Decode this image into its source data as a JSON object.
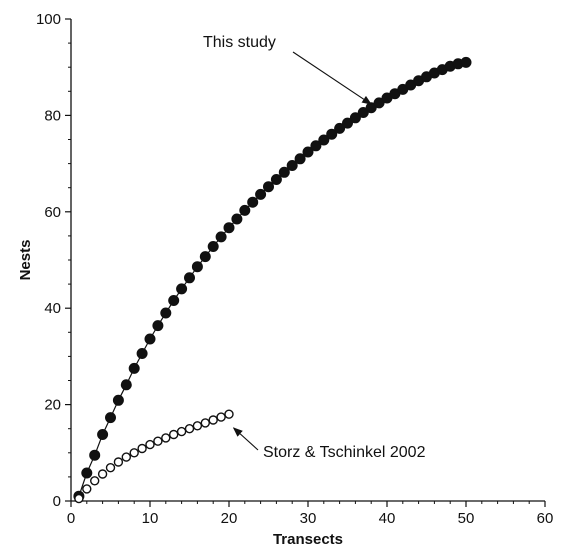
{
  "chart_data": {
    "type": "scatter",
    "title": "",
    "xlabel": "Transects",
    "ylabel": "Nests",
    "xlim": [
      0,
      60
    ],
    "ylim": [
      0,
      100
    ],
    "xticks": [
      "0",
      "10",
      "20",
      "30",
      "40",
      "50",
      "60"
    ],
    "yticks": [
      "0",
      "20",
      "40",
      "60",
      "80",
      "100"
    ],
    "grid": false,
    "series": [
      {
        "name": "This study",
        "marker": "filled-circle",
        "line": true,
        "color": "#111111",
        "x": [
          1,
          2,
          3,
          4,
          5,
          6,
          7,
          8,
          9,
          10,
          11,
          12,
          13,
          14,
          15,
          16,
          17,
          18,
          19,
          20,
          21,
          22,
          23,
          24,
          25,
          26,
          27,
          28,
          29,
          30,
          31,
          32,
          33,
          34,
          35,
          36,
          37,
          38,
          39,
          40,
          41,
          42,
          43,
          44,
          45,
          46,
          47,
          48,
          49,
          50
        ],
        "values": [
          1.0,
          5.8,
          9.5,
          13.8,
          17.3,
          20.9,
          24.1,
          27.5,
          30.6,
          33.6,
          36.4,
          39.0,
          41.6,
          44.0,
          46.3,
          48.6,
          50.7,
          52.8,
          54.8,
          56.7,
          58.5,
          60.3,
          62.0,
          63.6,
          65.2,
          66.7,
          68.2,
          69.6,
          71.0,
          72.4,
          73.7,
          74.9,
          76.1,
          77.3,
          78.4,
          79.5,
          80.6,
          81.6,
          82.6,
          83.6,
          84.5,
          85.4,
          86.3,
          87.2,
          88.0,
          88.8,
          89.5,
          90.2,
          90.7,
          91.0
        ]
      },
      {
        "name": "Storz & Tschinkel 2002",
        "marker": "open-circle",
        "line": false,
        "color": "#111111",
        "x": [
          1,
          2,
          3,
          4,
          5,
          6,
          7,
          8,
          9,
          10,
          11,
          12,
          13,
          14,
          15,
          16,
          17,
          18,
          19,
          20
        ],
        "values": [
          0.5,
          2.5,
          4.2,
          5.6,
          6.9,
          8.1,
          9.1,
          10.0,
          10.9,
          11.7,
          12.4,
          13.1,
          13.8,
          14.4,
          15.0,
          15.6,
          16.2,
          16.8,
          17.4,
          18.0
        ]
      }
    ],
    "annotations": [
      {
        "text": "This study",
        "target_series": "This study",
        "target_x": 38.5,
        "target_y": 81.5
      },
      {
        "text": "Storz & Tschinkel 2002",
        "target_series": "Storz & Tschinkel 2002",
        "target_x": 20.2,
        "target_y": 16.0
      }
    ]
  }
}
